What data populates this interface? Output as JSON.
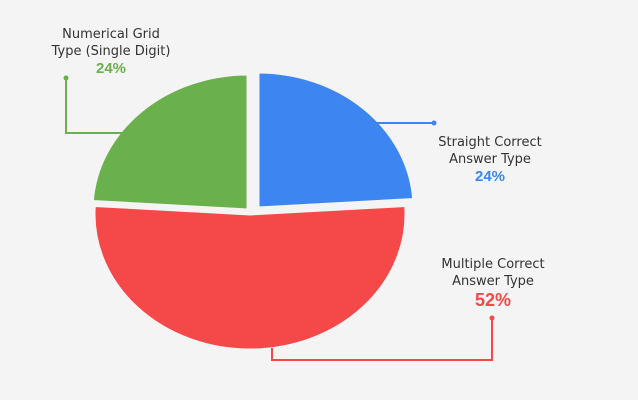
{
  "chart_data": {
    "type": "pie",
    "title": "",
    "slices": [
      {
        "name": "Straight Correct Answer Type",
        "value": 24,
        "label": "24%",
        "color": "#3d85f0"
      },
      {
        "name": "Multiple Correct Answer Type",
        "value": 52,
        "label": "52%",
        "color": "#f54848"
      },
      {
        "name": "Numerical Grid Type (Single Digit)",
        "value": 24,
        "label": "24%",
        "color": "#6ab04c"
      }
    ],
    "legend": "callouts",
    "exploded": true
  },
  "labels": {
    "blue": {
      "line1": "Straight Correct",
      "line2": "Answer Type",
      "pct": "24%"
    },
    "red": {
      "line1": "Multiple Correct",
      "line2": "Answer Type",
      "pct": "52%"
    },
    "green": {
      "line1": "Numerical Grid",
      "line2": "Type (Single Digit)",
      "pct": "24%"
    }
  }
}
